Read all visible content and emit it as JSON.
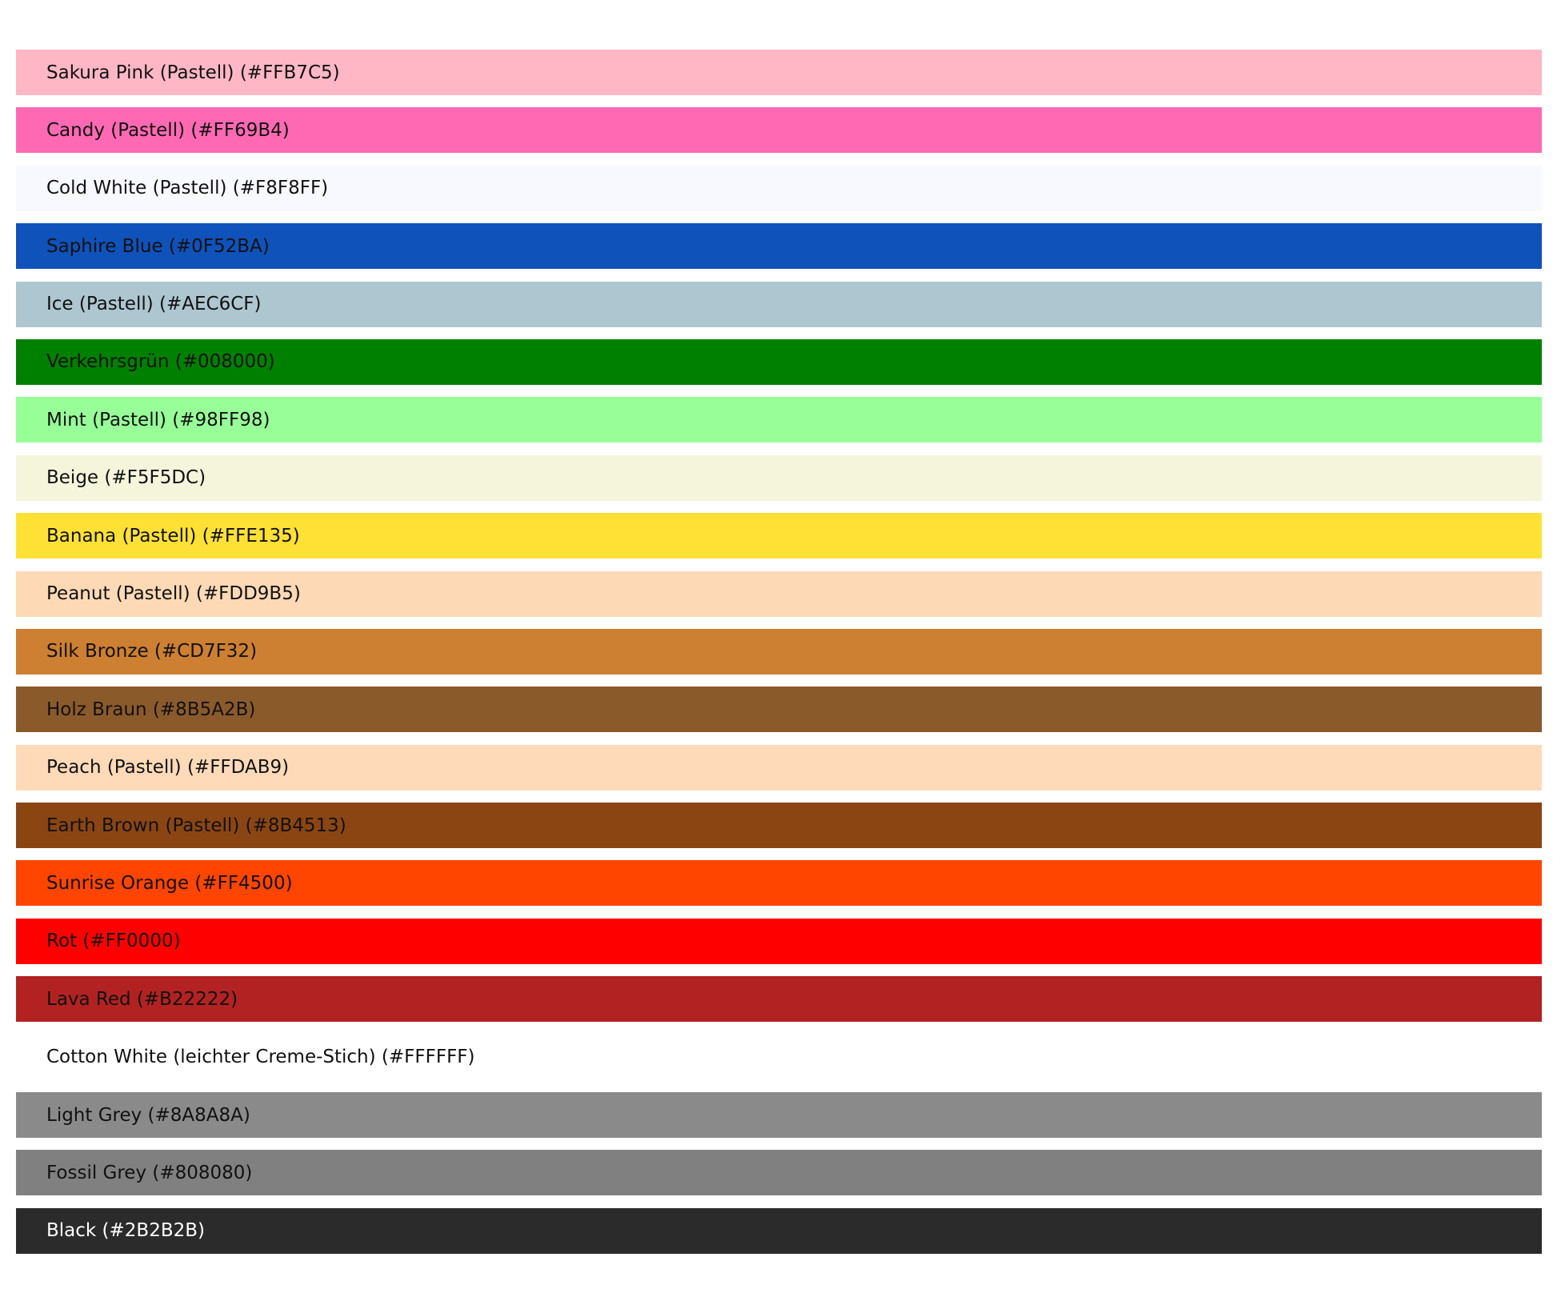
{
  "swatches": [
    {
      "label": "Sakura Pink (Pastell) (#FFB7C5)",
      "color": "#FFB7C5",
      "text_color": "#111111"
    },
    {
      "label": "Candy (Pastell) (#FF69B4)",
      "color": "#FF69B4",
      "text_color": "#111111"
    },
    {
      "label": "Cold White (Pastell) (#F8F8FF)",
      "color": "#F8F8FF",
      "text_color": "#111111"
    },
    {
      "label": "Saphire Blue (#0F52BA)",
      "color": "#0F52BA",
      "text_color": "#111111"
    },
    {
      "label": "Ice (Pastell) (#AEC6CF)",
      "color": "#AEC6CF",
      "text_color": "#111111"
    },
    {
      "label": "Verkehrsgrün (#008000)",
      "color": "#008000",
      "text_color": "#111111"
    },
    {
      "label": "Mint (Pastell) (#98FF98)",
      "color": "#98FF98",
      "text_color": "#111111"
    },
    {
      "label": "Beige (#F5F5DC)",
      "color": "#F5F5DC",
      "text_color": "#111111"
    },
    {
      "label": "Banana (Pastell) (#FFE135)",
      "color": "#FFE135",
      "text_color": "#111111"
    },
    {
      "label": "Peanut (Pastell) (#FDD9B5)",
      "color": "#FDD9B5",
      "text_color": "#111111"
    },
    {
      "label": "Silk Bronze (#CD7F32)",
      "color": "#CD7F32",
      "text_color": "#111111"
    },
    {
      "label": "Holz Braun (#8B5A2B)",
      "color": "#8B5A2B",
      "text_color": "#111111"
    },
    {
      "label": "Peach (Pastell) (#FFDAB9)",
      "color": "#FFDAB9",
      "text_color": "#111111"
    },
    {
      "label": "Earth Brown (Pastell) (#8B4513)",
      "color": "#8B4513",
      "text_color": "#111111"
    },
    {
      "label": "Sunrise Orange (#FF4500)",
      "color": "#FF4500",
      "text_color": "#111111"
    },
    {
      "label": "Rot (#FF0000)",
      "color": "#FF0000",
      "text_color": "#111111"
    },
    {
      "label": "Lava Red (#B22222)",
      "color": "#B22222",
      "text_color": "#111111"
    },
    {
      "label": "Cotton White (leichter Creme-Stich) (#FFFFFF)",
      "color": "#FFFFFF",
      "text_color": "#111111"
    },
    {
      "label": "Light Grey (#8A8A8A)",
      "color": "#8A8A8A",
      "text_color": "#111111"
    },
    {
      "label": "Fossil Grey (#808080)",
      "color": "#808080",
      "text_color": "#111111"
    },
    {
      "label": "Black (#2B2B2B)",
      "color": "#2B2B2B",
      "text_color": "#FFFFFF"
    }
  ]
}
